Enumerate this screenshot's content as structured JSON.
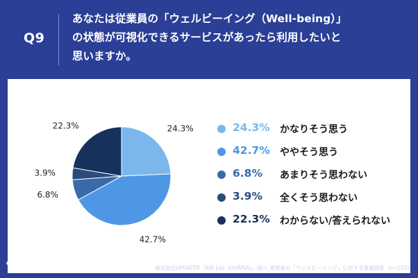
{
  "question": {
    "number": "Q9",
    "lines": [
      "あなたは従業員の「ウェルビーイング（Well-being）」",
      "の状態が可視化できるサービスがあったら利用したいと",
      "思いますか。"
    ]
  },
  "chart_data": {
    "type": "pie",
    "title": "",
    "legend_position": "right",
    "slices": [
      {
        "label": "かなりそう思う",
        "value": 24.3,
        "display": "24.3%",
        "color": "#7bb7ec"
      },
      {
        "label": "ややそう思う",
        "value": 42.7,
        "display": "42.7%",
        "color": "#4e97e5"
      },
      {
        "label": "あまりそう思わない",
        "value": 6.8,
        "display": "6.8%",
        "color": "#3a6aa9"
      },
      {
        "label": "全くそう思わない",
        "value": 3.9,
        "display": "3.9%",
        "color": "#2b4b7c"
      },
      {
        "label": "わからない/答えられない",
        "value": 22.3,
        "display": "22.3%",
        "color": "#16325c"
      }
    ]
  },
  "footer": {
    "logo": "みんなエアー",
    "source": "株式会社UPDATER「AIR Lab. JOURNAL」調べ_経営者の「ウェルビーイング」に対する意識調査（n=103）"
  }
}
